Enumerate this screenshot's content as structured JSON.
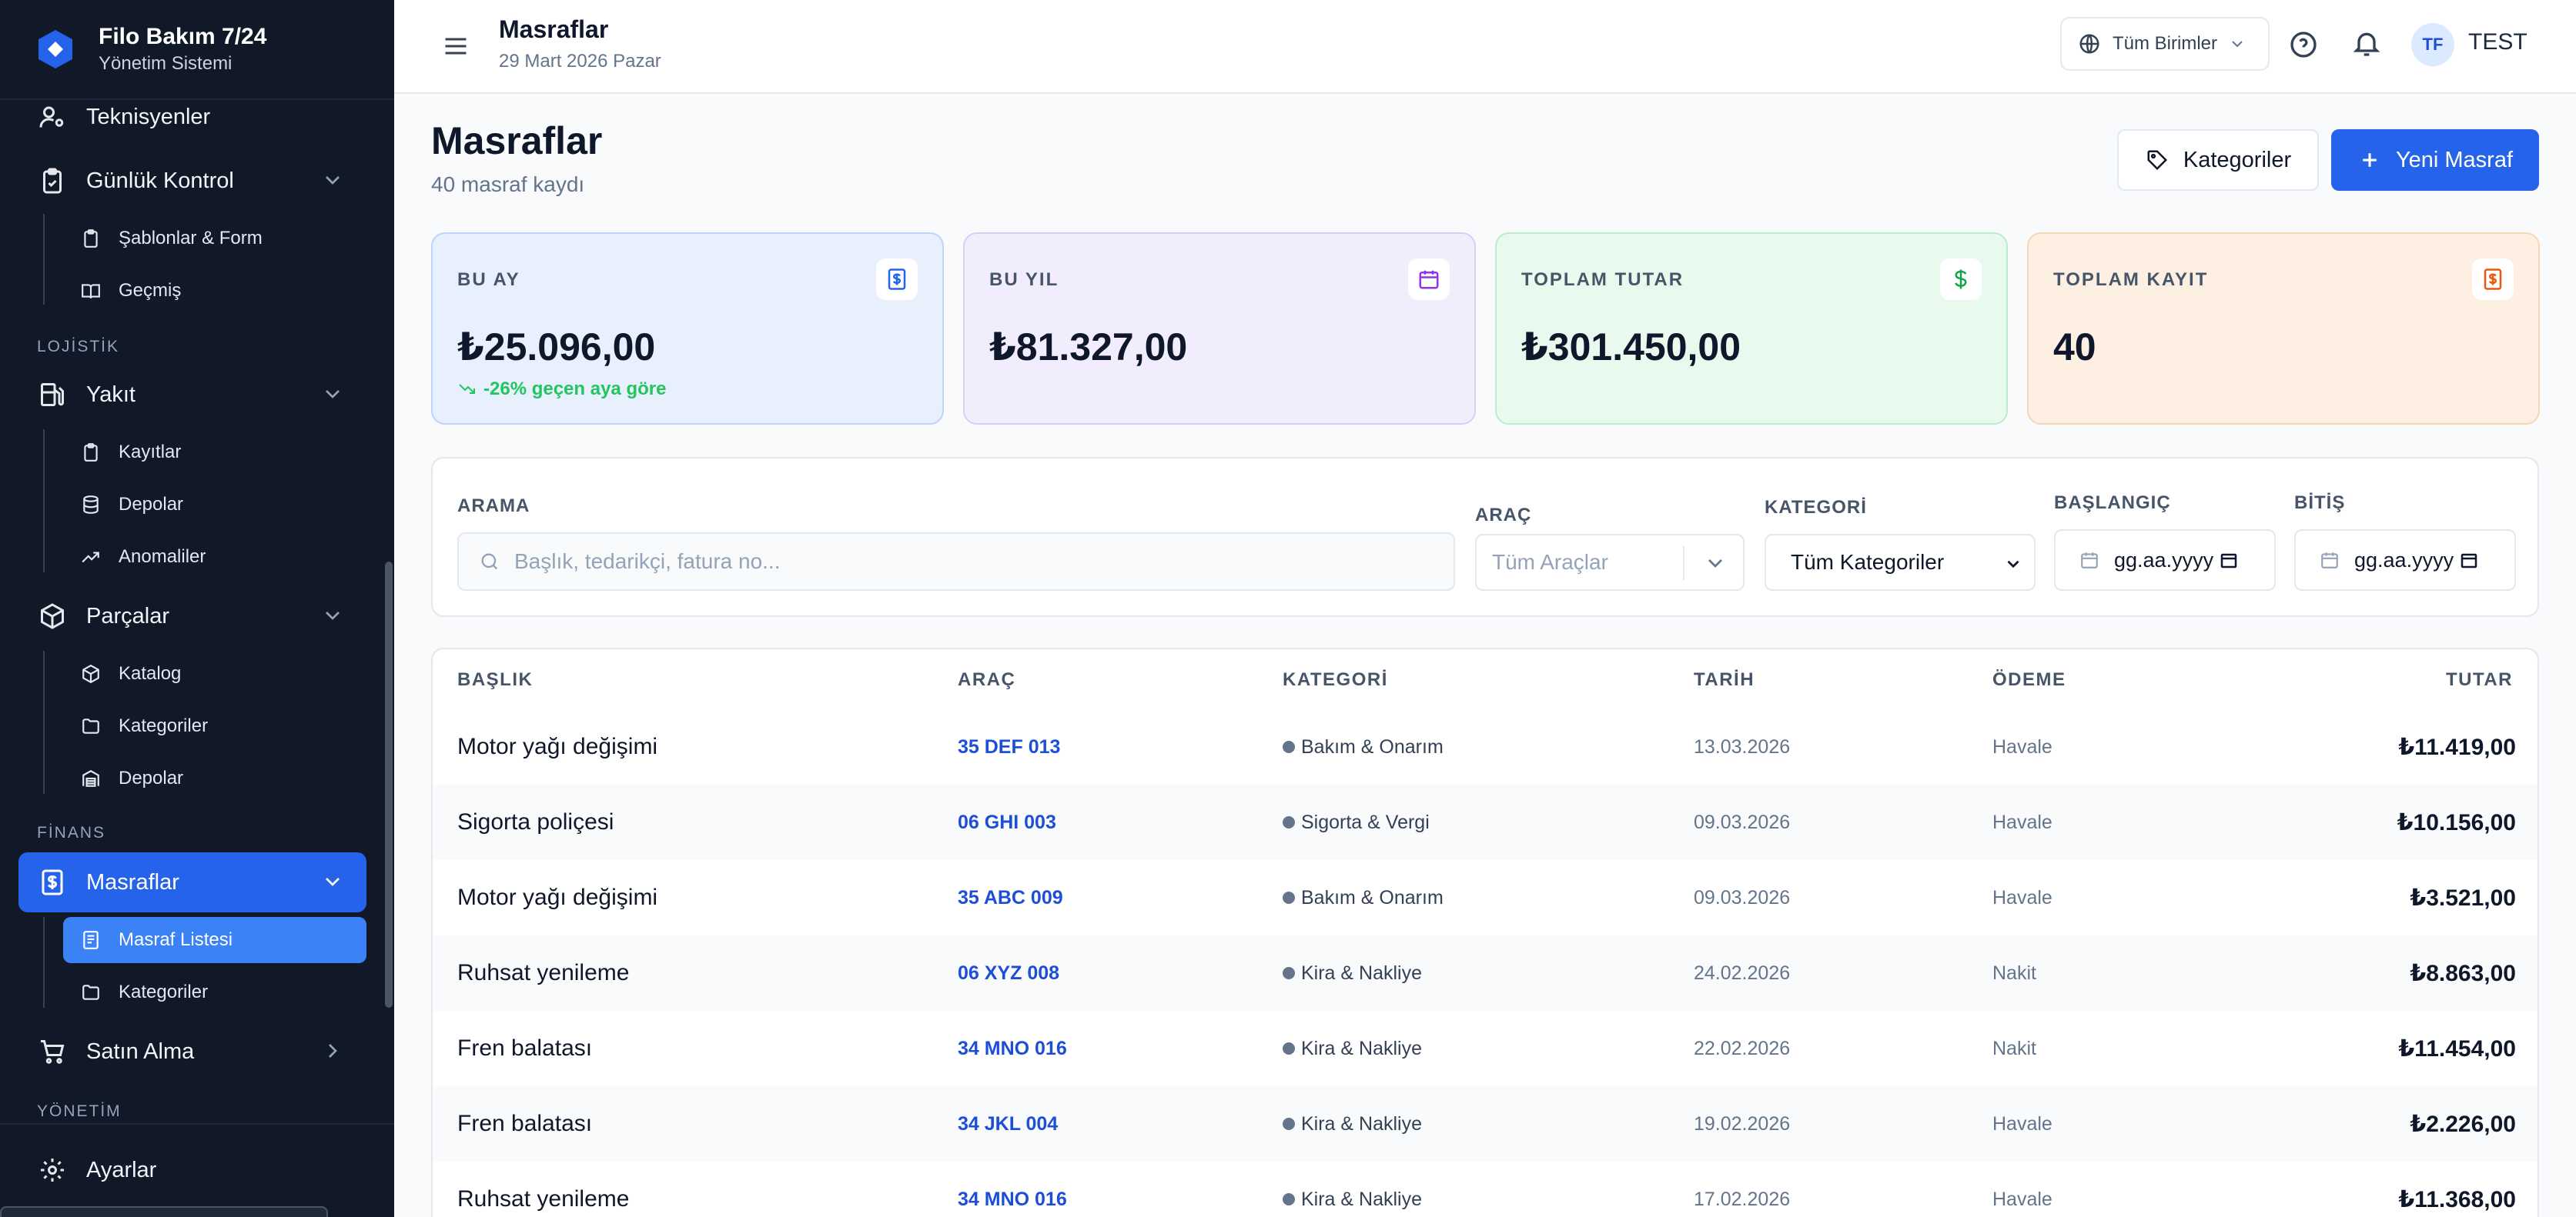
{
  "brand": {
    "title": "Filo Bakım 7/24",
    "subtitle": "Yönetim Sistemi"
  },
  "sidebar": {
    "items": {
      "teknisyenler": "Teknisyenler",
      "gunluk_kontrol": "Günlük Kontrol",
      "sablonlar": "Şablonlar & Form",
      "gecmis": "Geçmiş",
      "lojistik_label": "LOJİSTİK",
      "yakit": "Yakıt",
      "kayitlar": "Kayıtlar",
      "depolar": "Depolar",
      "anomaliler": "Anomaliler",
      "parcalar": "Parçalar",
      "katalog": "Katalog",
      "kategoriler": "Kategoriler",
      "parca_depolar": "Depolar",
      "finans_label": "FİNANS",
      "masraflar": "Masraflar",
      "masraf_listesi": "Masraf Listesi",
      "masraf_kategoriler": "Kategoriler",
      "satin_alma": "Satın Alma",
      "yonetim_label": "YÖNETİM",
      "ayarlar": "Ayarlar"
    }
  },
  "topbar": {
    "title": "Masraflar",
    "date": "29 Mart 2026 Pazar",
    "unit_select": "Tüm Birimler",
    "avatar_initials": "TF",
    "user_name": "TEST"
  },
  "page": {
    "title": "Masraflar",
    "subtitle": "40 masraf kaydı",
    "categories_button": "Kategoriler",
    "new_button": "Yeni Masraf"
  },
  "stats": [
    {
      "label": "BU AY",
      "value": "₺25.096,00",
      "trend": "-26% geçen aya göre",
      "icon": "receipt-icon",
      "accent": "#2563eb"
    },
    {
      "label": "BU YIL",
      "value": "₺81.327,00",
      "icon": "calendar-icon",
      "accent": "#9333ea"
    },
    {
      "label": "TOPLAM TUTAR",
      "value": "₺301.450,00",
      "icon": "dollar-icon",
      "accent": "#16a34a"
    },
    {
      "label": "TOPLAM KAYIT",
      "value": "40",
      "icon": "receipt-icon",
      "accent": "#ea580c"
    }
  ],
  "filters": {
    "search_label": "ARAMA",
    "search_placeholder": "Başlık, tedarikçi, fatura no...",
    "vehicle_label": "ARAÇ",
    "vehicle_placeholder": "Tüm Araçlar",
    "category_label": "KATEGORİ",
    "category_value": "Tüm Kategoriler",
    "start_label": "BAŞLANGIÇ",
    "start_placeholder": "gg.aa.yyyy",
    "end_label": "BİTİŞ",
    "end_placeholder": "gg.aa.yyyy"
  },
  "table": {
    "columns": {
      "title": "BAŞLIK",
      "vehicle": "ARAÇ",
      "category": "KATEGORİ",
      "date": "TARİH",
      "payment": "ÖDEME",
      "amount": "TUTAR"
    },
    "rows": [
      {
        "title": "Motor yağı değişimi",
        "vehicle": "35 DEF 013",
        "category": "Bakım & Onarım",
        "date": "13.03.2026",
        "payment": "Havale",
        "amount": "₺11.419,00"
      },
      {
        "title": "Sigorta poliçesi",
        "vehicle": "06 GHI 003",
        "category": "Sigorta & Vergi",
        "date": "09.03.2026",
        "payment": "Havale",
        "amount": "₺10.156,00"
      },
      {
        "title": "Motor yağı değişimi",
        "vehicle": "35 ABC 009",
        "category": "Bakım & Onarım",
        "date": "09.03.2026",
        "payment": "Havale",
        "amount": "₺3.521,00"
      },
      {
        "title": "Ruhsat yenileme",
        "vehicle": "06 XYZ 008",
        "category": "Kira & Nakliye",
        "date": "24.02.2026",
        "payment": "Nakit",
        "amount": "₺8.863,00"
      },
      {
        "title": "Fren balatası",
        "vehicle": "34 MNO 016",
        "category": "Kira & Nakliye",
        "date": "22.02.2026",
        "payment": "Nakit",
        "amount": "₺11.454,00"
      },
      {
        "title": "Fren balatası",
        "vehicle": "34 JKL 004",
        "category": "Kira & Nakliye",
        "date": "19.02.2026",
        "payment": "Havale",
        "amount": "₺2.226,00"
      },
      {
        "title": "Ruhsat yenileme",
        "vehicle": "34 MNO 016",
        "category": "Kira & Nakliye",
        "date": "17.02.2026",
        "payment": "Havale",
        "amount": "₺11.368,00"
      }
    ]
  },
  "colors": {
    "sidebar_bg": "#111827",
    "primary": "#2563eb",
    "active_sub": "#3b82f6",
    "trend_positive": "#22c55e"
  }
}
